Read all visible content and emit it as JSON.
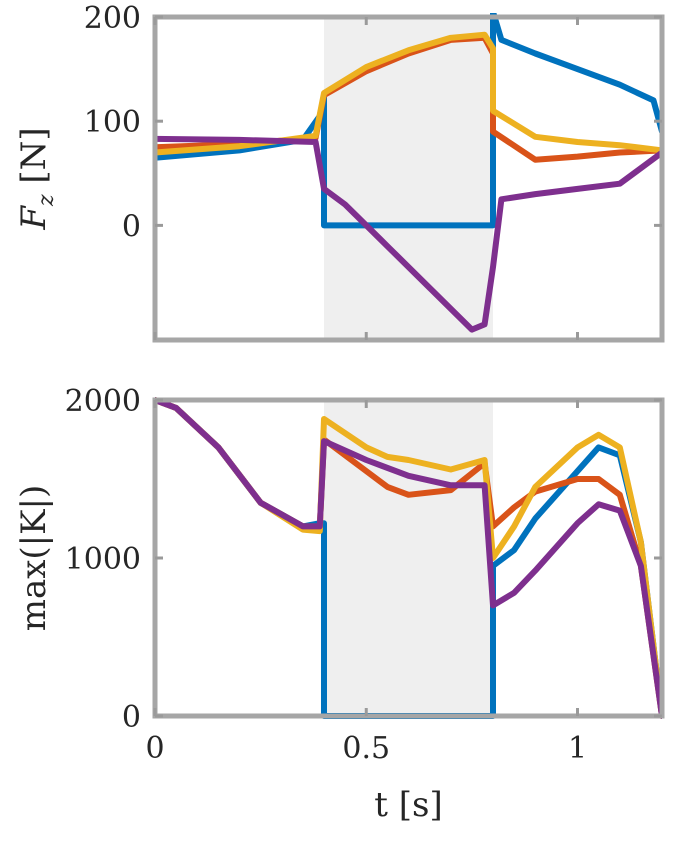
{
  "chart_data": [
    {
      "type": "line",
      "ylabel": "F_z [N]",
      "xlim": [
        0,
        1.2
      ],
      "ylim": [
        -110,
        200
      ],
      "yticks": [
        0,
        100,
        200
      ],
      "shaded_interval": [
        0.4,
        0.8
      ],
      "series": [
        {
          "color": "#0072BD",
          "x": [
            0,
            0.2,
            0.35,
            0.39,
            0.4,
            0.4001,
            0.8,
            0.8001,
            0.82,
            0.9,
            1.0,
            1.1,
            1.18,
            1.2
          ],
          "y": [
            65,
            72,
            82,
            105,
            125,
            0,
            0,
            205,
            178,
            165,
            150,
            135,
            120,
            90
          ]
        },
        {
          "color": "#D95319",
          "x": [
            0,
            0.2,
            0.38,
            0.4,
            0.5,
            0.6,
            0.7,
            0.78,
            0.8,
            0.8001,
            0.9,
            1.0,
            1.1,
            1.2
          ],
          "y": [
            75,
            78,
            84,
            125,
            148,
            165,
            178,
            180,
            165,
            90,
            63,
            66,
            70,
            72
          ]
        },
        {
          "color": "#EDB120",
          "x": [
            0,
            0.2,
            0.38,
            0.4,
            0.5,
            0.6,
            0.7,
            0.78,
            0.8,
            0.8001,
            0.9,
            1.0,
            1.1,
            1.2
          ],
          "y": [
            70,
            76,
            86,
            127,
            152,
            168,
            180,
            183,
            170,
            110,
            85,
            80,
            77,
            72
          ]
        },
        {
          "color": "#7E2F8E",
          "x": [
            0,
            0.2,
            0.38,
            0.4,
            0.45,
            0.55,
            0.65,
            0.75,
            0.78,
            0.8,
            0.82,
            0.9,
            1.0,
            1.1,
            1.2
          ],
          "y": [
            83,
            82,
            80,
            35,
            20,
            -20,
            -60,
            -100,
            -95,
            -40,
            25,
            30,
            35,
            40,
            70
          ]
        }
      ]
    },
    {
      "type": "line",
      "xlabel": "t [s]",
      "ylabel": "max(|K|)",
      "xlim": [
        0,
        1.2
      ],
      "ylim": [
        0,
        2000
      ],
      "xticks": [
        0,
        0.5,
        1
      ],
      "yticks": [
        0,
        1000,
        2000
      ],
      "shaded_interval": [
        0.4,
        0.8
      ],
      "series": [
        {
          "color": "#0072BD",
          "x": [
            0,
            0.05,
            0.15,
            0.25,
            0.35,
            0.39,
            0.4,
            0.4001,
            0.8,
            0.8001,
            0.85,
            0.9,
            1.0,
            1.05,
            1.1,
            1.15,
            1.2
          ],
          "y": [
            2000,
            1950,
            1700,
            1350,
            1200,
            1220,
            1220,
            0,
            0,
            950,
            1050,
            1250,
            1550,
            1700,
            1650,
            1100,
            0
          ]
        },
        {
          "color": "#D95319",
          "x": [
            0,
            0.05,
            0.15,
            0.25,
            0.35,
            0.39,
            0.4,
            0.5,
            0.55,
            0.6,
            0.7,
            0.78,
            0.8,
            0.85,
            0.9,
            1.0,
            1.05,
            1.1,
            1.15,
            1.2
          ],
          "y": [
            2000,
            1950,
            1700,
            1350,
            1200,
            1200,
            1750,
            1550,
            1450,
            1400,
            1430,
            1600,
            1200,
            1320,
            1420,
            1500,
            1500,
            1400,
            950,
            0
          ]
        },
        {
          "color": "#EDB120",
          "x": [
            0,
            0.05,
            0.15,
            0.25,
            0.35,
            0.39,
            0.4,
            0.5,
            0.55,
            0.6,
            0.7,
            0.78,
            0.8,
            0.85,
            0.9,
            1.0,
            1.05,
            1.1,
            1.15,
            1.2
          ],
          "y": [
            2000,
            1950,
            1700,
            1350,
            1180,
            1170,
            1880,
            1700,
            1640,
            1620,
            1560,
            1620,
            1000,
            1200,
            1450,
            1700,
            1780,
            1700,
            1100,
            0
          ]
        },
        {
          "color": "#7E2F8E",
          "x": [
            0,
            0.05,
            0.15,
            0.25,
            0.35,
            0.39,
            0.4,
            0.5,
            0.6,
            0.7,
            0.78,
            0.8,
            0.85,
            0.9,
            1.0,
            1.05,
            1.1,
            1.15,
            1.2
          ],
          "y": [
            2000,
            1950,
            1700,
            1350,
            1200,
            1200,
            1740,
            1620,
            1520,
            1460,
            1460,
            700,
            780,
            920,
            1220,
            1340,
            1300,
            950,
            0
          ]
        }
      ]
    }
  ]
}
